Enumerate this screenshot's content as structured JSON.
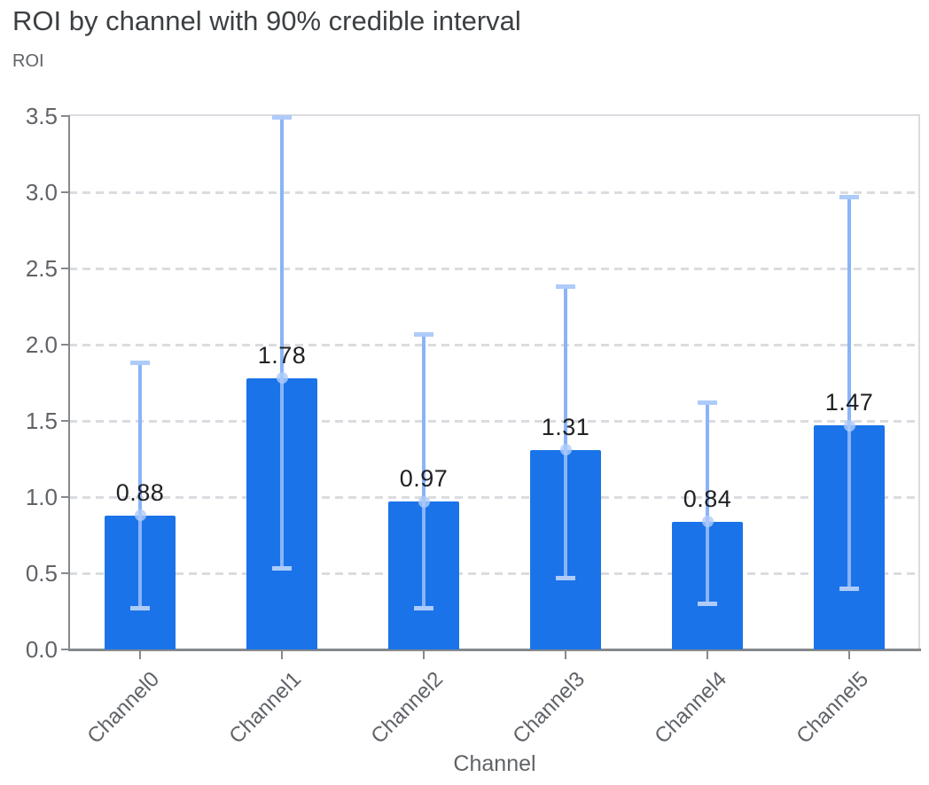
{
  "chart_data": {
    "type": "bar",
    "title": "ROI by channel with 90% credible interval",
    "ylabel": "ROI",
    "xlabel": "Channel",
    "categories": [
      "Channel0",
      "Channel1",
      "Channel2",
      "Channel3",
      "Channel4",
      "Channel5"
    ],
    "values": [
      0.88,
      1.78,
      0.97,
      1.31,
      0.84,
      1.47
    ],
    "value_labels": [
      "0.88",
      "1.78",
      "0.97",
      "1.31",
      "0.84",
      "1.47"
    ],
    "error_bars": {
      "label": "90% credible interval",
      "lower": [
        0.27,
        0.53,
        0.27,
        0.47,
        0.3,
        0.4
      ],
      "upper": [
        1.88,
        3.49,
        2.07,
        2.38,
        1.62,
        2.97
      ]
    },
    "ylim": [
      0,
      3.5
    ],
    "y_ticks": [
      "0.0",
      "0.5",
      "1.0",
      "1.5",
      "2.0",
      "2.5",
      "3.0",
      "3.5"
    ],
    "grid": true,
    "legend_position": "none"
  },
  "colors": {
    "bar": "#1a73e8",
    "error_line": "#8ab4f8",
    "error_cap": "#aecbfa",
    "marker": "#aecbfa",
    "gridline": "#dadce0",
    "plot_border": "#dadce0",
    "axis_line": "#85898d",
    "title_text": "#3c4043",
    "axis_text": "#5f6368",
    "value_label_text": "#202124",
    "background": "#ffffff"
  }
}
